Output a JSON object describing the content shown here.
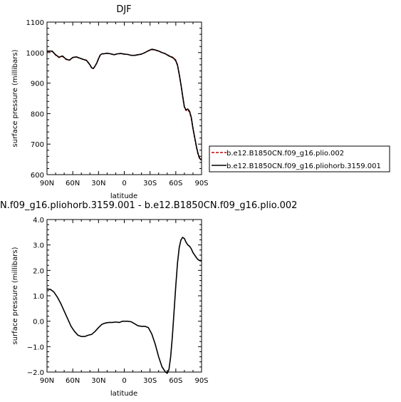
{
  "chart_data": [
    {
      "type": "line",
      "title": "DJF",
      "xlabel": "latitude",
      "ylabel": "surface pressure (millibars)",
      "xlim": [
        90,
        -90
      ],
      "ylim": [
        600,
        1100
      ],
      "x_tick_values": [
        90,
        60,
        30,
        0,
        -30,
        -60,
        -90
      ],
      "x_tick_labels": [
        "90N",
        "60N",
        "30N",
        "0",
        "30S",
        "60S",
        "90S"
      ],
      "y_tick_values": [
        600,
        700,
        800,
        900,
        1000,
        1100
      ],
      "y_tick_labels": [
        "600",
        "700",
        "800",
        "900",
        "1000",
        "1100"
      ],
      "legend_position": "right",
      "series": [
        {
          "name": "b.e12.B1850CN.f09_g16.plio.002",
          "color": "#cc0000",
          "dash": "dashed",
          "x": [
            90,
            84,
            80,
            76,
            72,
            68,
            64,
            60,
            56,
            52,
            48,
            44,
            42,
            40,
            38,
            36,
            34,
            32,
            30,
            28,
            26,
            24,
            20,
            16,
            12,
            8,
            4,
            0,
            -4,
            -8,
            -12,
            -16,
            -20,
            -24,
            -28,
            -32,
            -36,
            -40,
            -44,
            -48,
            -52,
            -56,
            -58,
            -60,
            -62,
            -64,
            -66,
            -68,
            -70,
            -72,
            -74,
            -76,
            -78,
            -80,
            -82,
            -84,
            -86,
            -88,
            -90
          ],
          "values": [
            1004,
            1004,
            992,
            984,
            988,
            978,
            975,
            984,
            986,
            982,
            978,
            975,
            968,
            960,
            950,
            948,
            956,
            966,
            980,
            992,
            996,
            996,
            998,
            996,
            993,
            996,
            997,
            995,
            994,
            991,
            991,
            993,
            995,
            1000,
            1006,
            1010,
            1008,
            1005,
            1000,
            996,
            990,
            985,
            982,
            975,
            960,
            930,
            895,
            855,
            820,
            810,
            812,
            805,
            785,
            750,
            720,
            690,
            665,
            650,
            648
          ]
        },
        {
          "name": "b.e12.B1850CN.f09_g16.pliohorb.3159.001",
          "color": "#000000",
          "dash": "solid",
          "x": [
            90,
            84,
            80,
            76,
            72,
            68,
            64,
            60,
            56,
            52,
            48,
            44,
            42,
            40,
            38,
            36,
            34,
            32,
            30,
            28,
            26,
            24,
            20,
            16,
            12,
            8,
            4,
            0,
            -4,
            -8,
            -12,
            -16,
            -20,
            -24,
            -28,
            -32,
            -36,
            -40,
            -44,
            -48,
            -52,
            -56,
            -58,
            -60,
            -62,
            -64,
            -66,
            -68,
            -70,
            -72,
            -74,
            -76,
            -78,
            -80,
            -82,
            -84,
            -86,
            -88,
            -90
          ],
          "values": [
            1005,
            1005,
            993,
            985,
            989,
            979,
            975,
            984,
            986,
            982,
            978,
            974,
            967,
            960,
            950,
            948,
            956,
            966,
            980,
            992,
            996,
            996,
            998,
            996,
            993,
            996,
            997,
            995,
            994,
            991,
            991,
            993,
            995,
            1000,
            1006,
            1011,
            1009,
            1005,
            1000,
            996,
            989,
            984,
            980,
            973,
            958,
            928,
            895,
            858,
            822,
            812,
            815,
            808,
            788,
            752,
            722,
            692,
            668,
            652,
            650
          ]
        }
      ]
    },
    {
      "type": "line",
      "title": "N.f09_g16.pliohorb.3159.001 - b.e12.B1850CN.f09_g16.plio.002",
      "xlabel": "latitude",
      "ylabel": "surface pressure (millibars)",
      "xlim": [
        90,
        -90
      ],
      "ylim": [
        -2.0,
        4.0
      ],
      "x_tick_values": [
        90,
        60,
        30,
        0,
        -30,
        -60,
        -90
      ],
      "x_tick_labels": [
        "90N",
        "60N",
        "30N",
        "0",
        "30S",
        "60S",
        "90S"
      ],
      "y_tick_values": [
        -2.0,
        -1.0,
        0.0,
        1.0,
        2.0,
        3.0,
        4.0
      ],
      "y_tick_labels": [
        "−2.0",
        "−1.0",
        "0.0",
        "1.0",
        "2.0",
        "3.0",
        "4.0"
      ],
      "series": [
        {
          "color": "#000000",
          "dash": "solid",
          "x": [
            90,
            86,
            82,
            78,
            74,
            70,
            66,
            62,
            58,
            54,
            50,
            46,
            42,
            38,
            34,
            30,
            26,
            22,
            18,
            14,
            10,
            6,
            2,
            0,
            -4,
            -8,
            -12,
            -16,
            -20,
            -24,
            -28,
            -32,
            -36,
            -40,
            -44,
            -48,
            -50,
            -52,
            -54,
            -56,
            -58,
            -60,
            -62,
            -64,
            -66,
            -68,
            -70,
            -72,
            -74,
            -76,
            -78,
            -80,
            -82,
            -84,
            -86,
            -88,
            -90
          ],
          "values": [
            1.27,
            1.25,
            1.15,
            0.95,
            0.7,
            0.4,
            0.1,
            -0.2,
            -0.4,
            -0.55,
            -0.6,
            -0.6,
            -0.55,
            -0.52,
            -0.4,
            -0.25,
            -0.12,
            -0.07,
            -0.05,
            -0.05,
            -0.03,
            -0.05,
            0.0,
            0.0,
            0.0,
            -0.02,
            -0.1,
            -0.18,
            -0.2,
            -0.2,
            -0.25,
            -0.5,
            -0.9,
            -1.4,
            -1.8,
            -2.0,
            -2.05,
            -1.9,
            -1.4,
            -0.6,
            0.4,
            1.4,
            2.3,
            2.9,
            3.2,
            3.3,
            3.25,
            3.1,
            3.0,
            2.95,
            2.85,
            2.7,
            2.6,
            2.5,
            2.42,
            2.38,
            2.37
          ]
        }
      ]
    }
  ]
}
